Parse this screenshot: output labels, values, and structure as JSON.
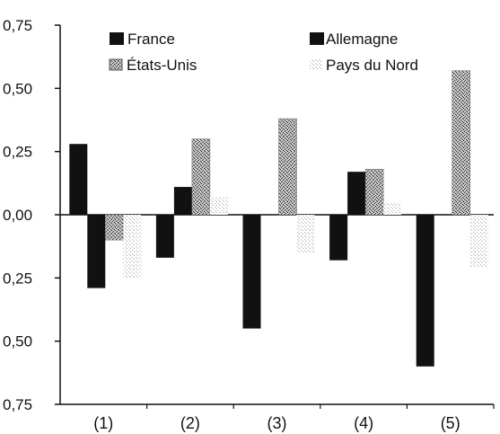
{
  "chart_data": {
    "type": "bar",
    "categories": [
      "(1)",
      "(2)",
      "(3)",
      "(4)",
      "(5)"
    ],
    "series": [
      {
        "name": "France",
        "values": [
          0.28,
          -0.17,
          -0.45,
          -0.18,
          -0.6
        ],
        "color": "#111111",
        "pattern": "solid"
      },
      {
        "name": "Allemagne",
        "values": [
          -0.29,
          0.11,
          0.0,
          0.17,
          0.0
        ],
        "color": "#111111",
        "pattern": "solid"
      },
      {
        "name": "États-Unis",
        "values": [
          -0.1,
          0.3,
          0.38,
          0.18,
          0.57
        ],
        "color": "#666666",
        "pattern": "stipple-dark"
      },
      {
        "name": "Pays du Nord",
        "values": [
          -0.25,
          0.07,
          -0.15,
          0.05,
          -0.21
        ],
        "color": "#bbbbbb",
        "pattern": "stipple-light"
      }
    ],
    "y_ticks": [
      0.75,
      0.5,
      0.25,
      0.0,
      -0.25,
      -0.5,
      -0.75
    ],
    "y_tick_labels": [
      "0,75",
      "0,50",
      "0,25",
      "0,00",
      "0,25",
      "0,50",
      "0,75"
    ],
    "ylim": [
      -0.75,
      0.75
    ],
    "grid": false,
    "legend_position": "top"
  }
}
